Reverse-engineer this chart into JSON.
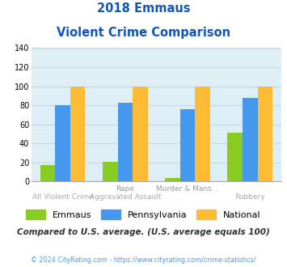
{
  "title_line1": "2018 Emmaus",
  "title_line2": "Violent Crime Comparison",
  "cat_labels_top": [
    "",
    "Rape",
    "Murder & Mans...",
    ""
  ],
  "cat_labels_bot": [
    "All Violent Crime",
    "Aggravated Assault",
    "",
    "Robbery"
  ],
  "emmaus": [
    17,
    21,
    4,
    51
  ],
  "pennsylvania": [
    80,
    83,
    76,
    88
  ],
  "national": [
    100,
    100,
    100,
    100
  ],
  "emmaus_color": "#88cc22",
  "pennsylvania_color": "#4499ee",
  "national_color": "#ffbb33",
  "ylim": [
    0,
    140
  ],
  "yticks": [
    0,
    20,
    40,
    60,
    80,
    100,
    120,
    140
  ],
  "bg_color": "#ddeef5",
  "title_color": "#1155bb",
  "footer_text": "Compared to U.S. average. (U.S. average equals 100)",
  "footer_color": "#333333",
  "credit_text": "© 2024 CityRating.com - https://www.cityrating.com/crime-statistics/",
  "credit_color": "#4499ee",
  "legend_labels": [
    "Emmaus",
    "Pennsylvania",
    "National"
  ],
  "grid_color": "#c5d8e8",
  "label_top_color": "#999999",
  "label_bot_color": "#aaaaaa"
}
